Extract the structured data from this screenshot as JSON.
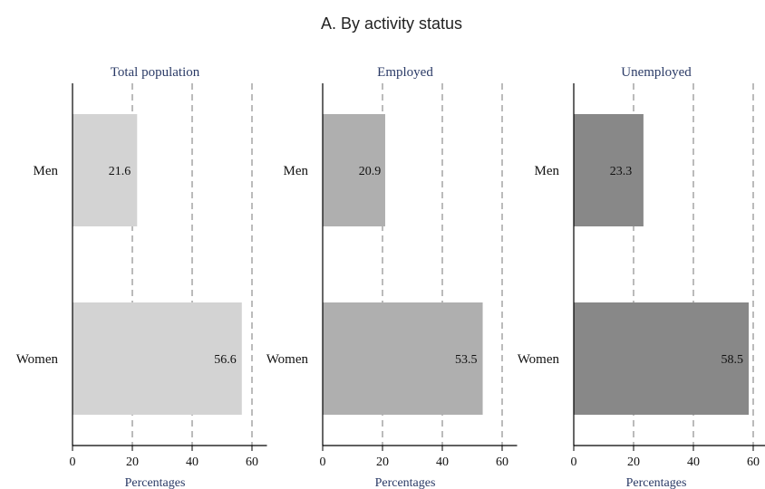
{
  "chart_data": {
    "type": "bar",
    "orientation": "horizontal",
    "title": "A. By activity status",
    "categories": [
      "Men",
      "Women"
    ],
    "xlabel": "Percentages",
    "xlim": [
      0,
      65
    ],
    "xticks": [
      0,
      20,
      40,
      60
    ],
    "grid": "vertical dashed",
    "panels": [
      {
        "name": "Total population",
        "values": [
          21.6,
          56.6
        ],
        "color": "#d3d3d3"
      },
      {
        "name": "Employed",
        "values": [
          20.9,
          53.5
        ],
        "color": "#afafaf"
      },
      {
        "name": "Unemployed",
        "values": [
          23.3,
          58.5
        ],
        "color": "#888888"
      }
    ]
  }
}
